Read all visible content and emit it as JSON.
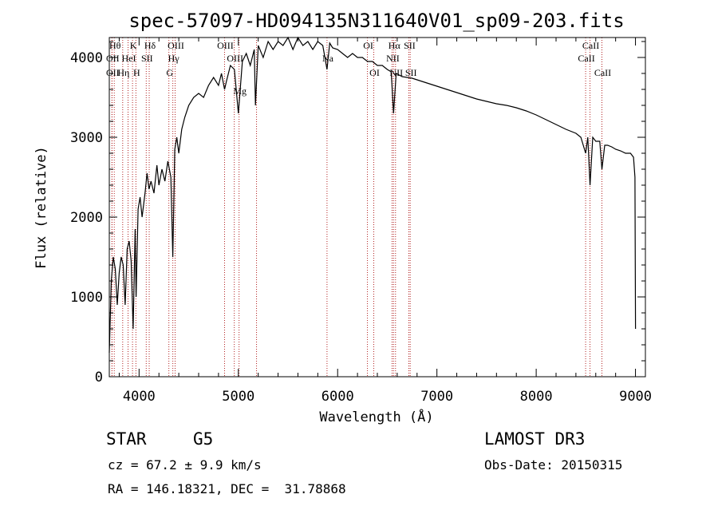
{
  "chart_data": {
    "type": "line",
    "title": "spec-57097-HD094135N311640V01_sp09-203.fits",
    "xlabel": "Wavelength (Å)",
    "ylabel": "Flux (relative)",
    "xlim": [
      3700,
      9100
    ],
    "ylim": [
      0,
      4250
    ],
    "xticks": [
      4000,
      5000,
      6000,
      7000,
      8000,
      9000
    ],
    "xtick_labels": [
      "4000",
      "5000",
      "6000",
      "7000",
      "8000",
      "9000"
    ],
    "yticks": [
      0,
      1000,
      2000,
      3000,
      4000
    ],
    "ytick_labels": [
      "0",
      "1000",
      "2000",
      "3000",
      "4000"
    ],
    "grid": false,
    "series": [
      {
        "name": "flux",
        "x": [
          3700,
          3720,
          3740,
          3760,
          3780,
          3800,
          3820,
          3840,
          3860,
          3880,
          3900,
          3920,
          3940,
          3960,
          3970,
          3990,
          4010,
          4030,
          4060,
          4080,
          4100,
          4120,
          4150,
          4180,
          4200,
          4230,
          4260,
          4290,
          4320,
          4340,
          4360,
          4380,
          4400,
          4430,
          4460,
          4500,
          4550,
          4600,
          4650,
          4700,
          4750,
          4800,
          4830,
          4861,
          4880,
          4920,
          4960,
          5000,
          5040,
          5080,
          5120,
          5160,
          5172,
          5200,
          5250,
          5300,
          5350,
          5400,
          5450,
          5500,
          5550,
          5600,
          5650,
          5700,
          5750,
          5800,
          5850,
          5893,
          5920,
          5950,
          6000,
          6050,
          6100,
          6150,
          6200,
          6250,
          6300,
          6350,
          6400,
          6450,
          6500,
          6540,
          6563,
          6590,
          6620,
          6650,
          6700,
          6750,
          6800,
          6850,
          6900,
          7000,
          7100,
          7200,
          7300,
          7400,
          7500,
          7600,
          7700,
          7800,
          7900,
          8000,
          8100,
          8200,
          8300,
          8400,
          8450,
          8498,
          8520,
          8542,
          8570,
          8600,
          8640,
          8662,
          8690,
          8720,
          8760,
          8800,
          8850,
          8900,
          8950,
          8980,
          8995,
          9000
        ],
        "y": [
          300,
          1200,
          1500,
          1350,
          900,
          1300,
          1500,
          1400,
          900,
          1600,
          1700,
          1450,
          600,
          1850,
          1000,
          2100,
          2250,
          2000,
          2300,
          2550,
          2350,
          2450,
          2300,
          2650,
          2400,
          2600,
          2450,
          2700,
          2500,
          1500,
          2850,
          3000,
          2800,
          3100,
          3250,
          3400,
          3500,
          3550,
          3500,
          3650,
          3750,
          3650,
          3800,
          3600,
          3700,
          3900,
          3850,
          3300,
          3950,
          4050,
          3900,
          4100,
          3400,
          4150,
          4000,
          4200,
          4100,
          4200,
          4150,
          4250,
          4100,
          4250,
          4150,
          4200,
          4100,
          4200,
          4150,
          3850,
          4180,
          4120,
          4100,
          4050,
          4000,
          4050,
          4000,
          4000,
          3950,
          3950,
          3900,
          3900,
          3850,
          3820,
          3300,
          3800,
          3780,
          3760,
          3750,
          3740,
          3720,
          3700,
          3680,
          3640,
          3600,
          3560,
          3520,
          3480,
          3450,
          3420,
          3400,
          3370,
          3330,
          3280,
          3220,
          3160,
          3100,
          3050,
          3000,
          2800,
          3000,
          2400,
          3000,
          2950,
          2950,
          2600,
          2900,
          2900,
          2880,
          2850,
          2830,
          2800,
          2800,
          2750,
          2500,
          600
        ]
      }
    ],
    "line_markers": [
      {
        "wl": 3750,
        "label": "Hθ",
        "row": 0
      },
      {
        "wl": 3727,
        "label": "OII",
        "row": 1
      },
      {
        "wl": 3727,
        "label": "OII",
        "row": 2
      },
      {
        "wl": 3835,
        "label": "Hη",
        "row": 2
      },
      {
        "wl": 3889,
        "label": "HeI",
        "row": 1
      },
      {
        "wl": 3934,
        "label": "K",
        "row": 0
      },
      {
        "wl": 3968,
        "label": "H",
        "row": 2
      },
      {
        "wl": 4072,
        "label": "SII",
        "row": 1
      },
      {
        "wl": 4102,
        "label": "Hδ",
        "row": 0
      },
      {
        "wl": 4300,
        "label": "G",
        "row": 2
      },
      {
        "wl": 4340,
        "label": "Hγ",
        "row": 1
      },
      {
        "wl": 4363,
        "label": "OIII",
        "row": 0
      },
      {
        "wl": 4861,
        "label": "OIII",
        "row": 0
      },
      {
        "wl": 4959,
        "label": "OIII",
        "row": 1
      },
      {
        "wl": 5007,
        "label": "Mg",
        "row": 3
      },
      {
        "wl": 5183,
        "label": "",
        "row": -1
      },
      {
        "wl": 5893,
        "label": "Na",
        "row": 1
      },
      {
        "wl": 6300,
        "label": "OI",
        "row": 0
      },
      {
        "wl": 6364,
        "label": "OI",
        "row": 2
      },
      {
        "wl": 6548,
        "label": "NII",
        "row": 1
      },
      {
        "wl": 6563,
        "label": "Hα",
        "row": 0
      },
      {
        "wl": 6583,
        "label": "NII",
        "row": 2
      },
      {
        "wl": 6717,
        "label": "SII",
        "row": 0
      },
      {
        "wl": 6731,
        "label": "SII",
        "row": 2
      },
      {
        "wl": 8498,
        "label": "CaII",
        "row": 1
      },
      {
        "wl": 8542,
        "label": "CaII",
        "row": 0
      },
      {
        "wl": 8662,
        "label": "CaII",
        "row": 2
      }
    ]
  },
  "info": {
    "object_class": "STAR",
    "subclass": "G5",
    "cz": "cz = 67.2 ± 9.9 km/s",
    "coords": "RA = 146.18321, DEC =  31.78868",
    "survey": "LAMOST DR3",
    "obs_date": "Obs-Date: 20150315"
  },
  "colors": {
    "marker": "#b22222",
    "line": "#000000",
    "axes": "#000000"
  }
}
